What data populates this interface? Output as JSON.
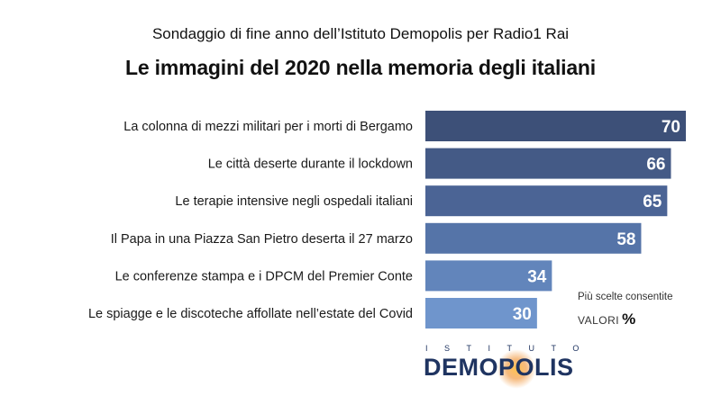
{
  "header": {
    "subtitle": "Sondaggio di fine anno dell’Istituto Demopolis per Radio1 Rai",
    "title": "Le immagini del 2020 nella memoria degli italiani"
  },
  "notes": {
    "multiple_choice": "Più scelte consentite",
    "unit_label": "VALORI",
    "unit_symbol": "%"
  },
  "logo": {
    "top_text": "ISTITUTO",
    "main_text": "DEMOPOLIS"
  },
  "chart_data": {
    "type": "bar",
    "orientation": "horizontal",
    "categories": [
      "La colonna di mezzi militari per i morti di Bergamo",
      "Le città deserte durante il lockdown",
      "Le terapie intensive negli ospedali italiani",
      "Il Papa in una Piazza San Pietro deserta il 27 marzo",
      "Le conferenze stampa e i DPCM del Premier Conte",
      "Le spiagge e le discoteche affollate nell’estate del Covid"
    ],
    "values": [
      70,
      66,
      65,
      58,
      34,
      30
    ],
    "xlim": [
      0,
      70
    ],
    "grid": false,
    "colors": [
      "#3d5078",
      "#445a86",
      "#4b6495",
      "#5574a8",
      "#6285bb",
      "#6f95cc"
    ]
  }
}
